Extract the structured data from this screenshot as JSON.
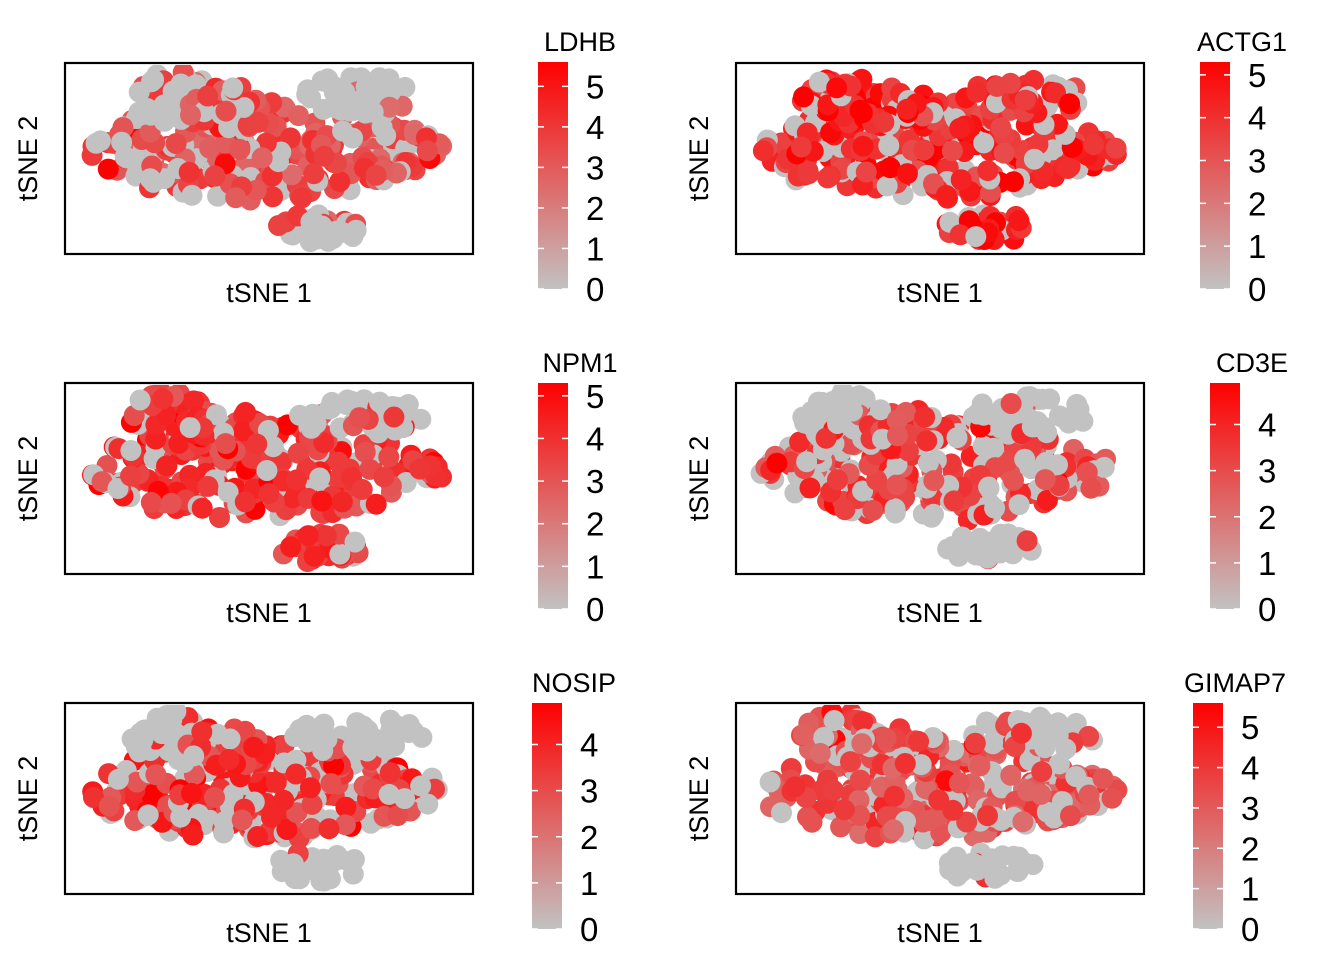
{
  "figure": {
    "colors": {
      "low": "#c2c2c2",
      "high": "#ff0000",
      "frame": "#000000"
    }
  },
  "chart_data": [
    {
      "type": "scatter",
      "title": "LDHB",
      "xlabel": "tSNE 1",
      "ylabel": "tSNE 2",
      "legend": {
        "title": "LDHB",
        "ticks": [
          0,
          1,
          2,
          3,
          4,
          5
        ],
        "max": 5.6
      },
      "pattern": {
        "base": 3.0,
        "bright": 0.05,
        "grey_fraction": 0.25,
        "grey_clusters": [
          "top-left",
          "top-right",
          "bottom"
        ]
      }
    },
    {
      "type": "scatter",
      "title": "ACTG1",
      "xlabel": "tSNE 1",
      "ylabel": "tSNE 2",
      "legend": {
        "title": "ACTG1",
        "ticks": [
          0,
          1,
          2,
          3,
          4,
          5
        ],
        "max": 5.3
      },
      "pattern": {
        "base": 3.6,
        "bright": 0.2,
        "grey_fraction": 0.2,
        "grey_clusters": []
      }
    },
    {
      "type": "scatter",
      "title": "NPM1",
      "xlabel": "tSNE 1",
      "ylabel": "tSNE 2",
      "legend": {
        "title": "NPM1",
        "ticks": [
          0,
          1,
          2,
          3,
          4,
          5
        ],
        "max": 5.3
      },
      "pattern": {
        "base": 3.4,
        "bright": 0.08,
        "grey_fraction": 0.16,
        "grey_clusters": [
          "top-right"
        ]
      }
    },
    {
      "type": "scatter",
      "title": "CD3E",
      "xlabel": "tSNE 1",
      "ylabel": "tSNE 2",
      "legend": {
        "title": "CD3E",
        "ticks": [
          0,
          1,
          2,
          3,
          4
        ],
        "max": 4.9
      },
      "pattern": {
        "base": 3.0,
        "bright": 0.05,
        "grey_fraction": 0.35,
        "grey_clusters": [
          "top-left",
          "top-right",
          "bottom"
        ]
      }
    },
    {
      "type": "scatter",
      "title": "NOSIP",
      "xlabel": "tSNE 1",
      "ylabel": "tSNE 2",
      "legend": {
        "title": "NOSIP",
        "ticks": [
          0,
          1,
          2,
          3,
          4
        ],
        "max": 4.9
      },
      "pattern": {
        "base": 3.2,
        "bright": 0.08,
        "grey_fraction": 0.28,
        "grey_clusters": [
          "top-left",
          "top-right",
          "bottom"
        ]
      }
    },
    {
      "type": "scatter",
      "title": "GIMAP7",
      "xlabel": "tSNE 1",
      "ylabel": "tSNE 2",
      "legend": {
        "title": "GIMAP7",
        "ticks": [
          0,
          1,
          2,
          3,
          4,
          5
        ],
        "max": 5.6
      },
      "pattern": {
        "base": 3.0,
        "bright": 0.04,
        "grey_fraction": 0.3,
        "grey_clusters": [
          "top-right",
          "bottom"
        ]
      }
    }
  ]
}
